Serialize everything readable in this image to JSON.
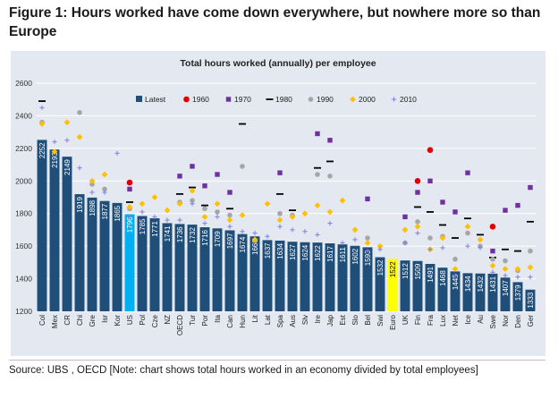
{
  "figure_title": "Figure 1: Hours worked have come down everywhere, but nowhere more so than Europe",
  "source_note": "Source: UBS , OECD [Note: chart shows total hours worked in an economy divided by total employees]",
  "colors": {
    "bar": "#1f4e79",
    "us_bar": "#00b0f0",
    "euro_bar": "#ffff00",
    "y1960": "#e00000",
    "y1970": "#7030a0",
    "y1980": "#000000",
    "y1990": "#a6a6a6",
    "y2000": "#ffc000",
    "y2010": "#7f7fdf"
  },
  "chart_data": {
    "type": "bar",
    "title": "Total hours worked (annually) per employee",
    "xlabel": "",
    "ylabel": "",
    "ylim": [
      1200,
      2600
    ],
    "yticks": [
      1200,
      1400,
      1600,
      1800,
      2000,
      2200,
      2400,
      2600
    ],
    "legend": [
      "Latest",
      "1960",
      "1970",
      "1980",
      "1990",
      "2000",
      "2010"
    ],
    "legend_position": "top",
    "categories": [
      "Col",
      "Mex",
      "CR",
      "Chi",
      "Gre",
      "Isr",
      "Kor",
      "US",
      "Pol",
      "Cze",
      "NZ",
      "OECD",
      "Tur",
      "Por",
      "Ita",
      "Can",
      "Hun",
      "Lit",
      "Lat",
      "Spa",
      "Aus",
      "Slv",
      "Ire",
      "Jap",
      "Est",
      "Slo",
      "Bel",
      "Swi",
      "Euro",
      "UK",
      "Fin",
      "Fra",
      "Lux",
      "Net",
      "Ice",
      "Au",
      "Swe",
      "Nor",
      "Den",
      "Ger"
    ],
    "values": [
      2252,
      2193,
      2149,
      1919,
      1898,
      1877,
      1865,
      1796,
      1785,
      1771,
      1741,
      1736,
      1732,
      1716,
      1709,
      1697,
      1674,
      1660,
      1637,
      1634,
      1627,
      1624,
      1622,
      1617,
      1611,
      1602,
      1593,
      1532,
      1522,
      1512,
      1509,
      1491,
      1468,
      1445,
      1434,
      1432,
      1431,
      1407,
      1379,
      1333
    ],
    "series": [
      {
        "name": "1960",
        "values": [
          null,
          null,
          null,
          null,
          null,
          null,
          null,
          1990,
          null,
          null,
          null,
          null,
          null,
          null,
          null,
          null,
          null,
          null,
          null,
          null,
          null,
          null,
          null,
          null,
          null,
          null,
          null,
          null,
          null,
          null,
          2000,
          2190,
          null,
          null,
          null,
          null,
          1720,
          null,
          null,
          null
        ]
      },
      {
        "name": "1970",
        "values": [
          null,
          null,
          null,
          null,
          null,
          null,
          null,
          1950,
          null,
          null,
          null,
          2030,
          2090,
          1970,
          2040,
          1930,
          null,
          null,
          null,
          2050,
          null,
          null,
          2290,
          2250,
          null,
          null,
          1890,
          null,
          null,
          1780,
          1930,
          2000,
          1870,
          1810,
          2050,
          null,
          1570,
          1820,
          1850,
          1960
        ]
      },
      {
        "name": "1980",
        "values": [
          2490,
          null,
          null,
          null,
          null,
          null,
          null,
          1870,
          null,
          null,
          null,
          1920,
          1960,
          1850,
          null,
          1830,
          2350,
          null,
          null,
          1920,
          1820,
          null,
          2080,
          2120,
          null,
          null,
          null,
          null,
          null,
          null,
          1840,
          1810,
          1730,
          1650,
          1770,
          1670,
          1530,
          1580,
          1570,
          1750
        ]
      },
      {
        "name": "1990",
        "values": [
          2360,
          null,
          null,
          2420,
          1980,
          1950,
          null,
          1830,
          null,
          null,
          null,
          1870,
          1880,
          1830,
          1810,
          1790,
          2090,
          null,
          null,
          1800,
          1790,
          null,
          2040,
          2030,
          null,
          null,
          1650,
          null,
          null,
          1620,
          1750,
          1650,
          1660,
          1520,
          1680,
          1600,
          1520,
          1510,
          1450,
          1570
        ]
      },
      {
        "name": "2000",
        "values": [
          2350,
          2180,
          2360,
          2270,
          2000,
          2040,
          null,
          1840,
          1860,
          1900,
          1820,
          1860,
          1940,
          1780,
          1860,
          1760,
          1790,
          1640,
          1860,
          1760,
          1780,
          1800,
          1850,
          1810,
          1880,
          1700,
          1620,
          1600,
          null,
          1700,
          1720,
          1580,
          1650,
          1460,
          1720,
          1640,
          1480,
          1460,
          1460,
          1470
        ]
      },
      {
        "name": "2010",
        "values": [
          2450,
          2240,
          2250,
          2080,
          1930,
          1930,
          2170,
          1780,
          1810,
          1780,
          1760,
          1760,
          1860,
          1740,
          1780,
          1720,
          1690,
          1680,
          1660,
          1720,
          1700,
          1690,
          1670,
          1740,
          1620,
          1640,
          1570,
          1580,
          null,
          1620,
          1680,
          1580,
          1590,
          1420,
          1600,
          1590,
          1440,
          1420,
          1410,
          1410
        ]
      }
    ]
  }
}
